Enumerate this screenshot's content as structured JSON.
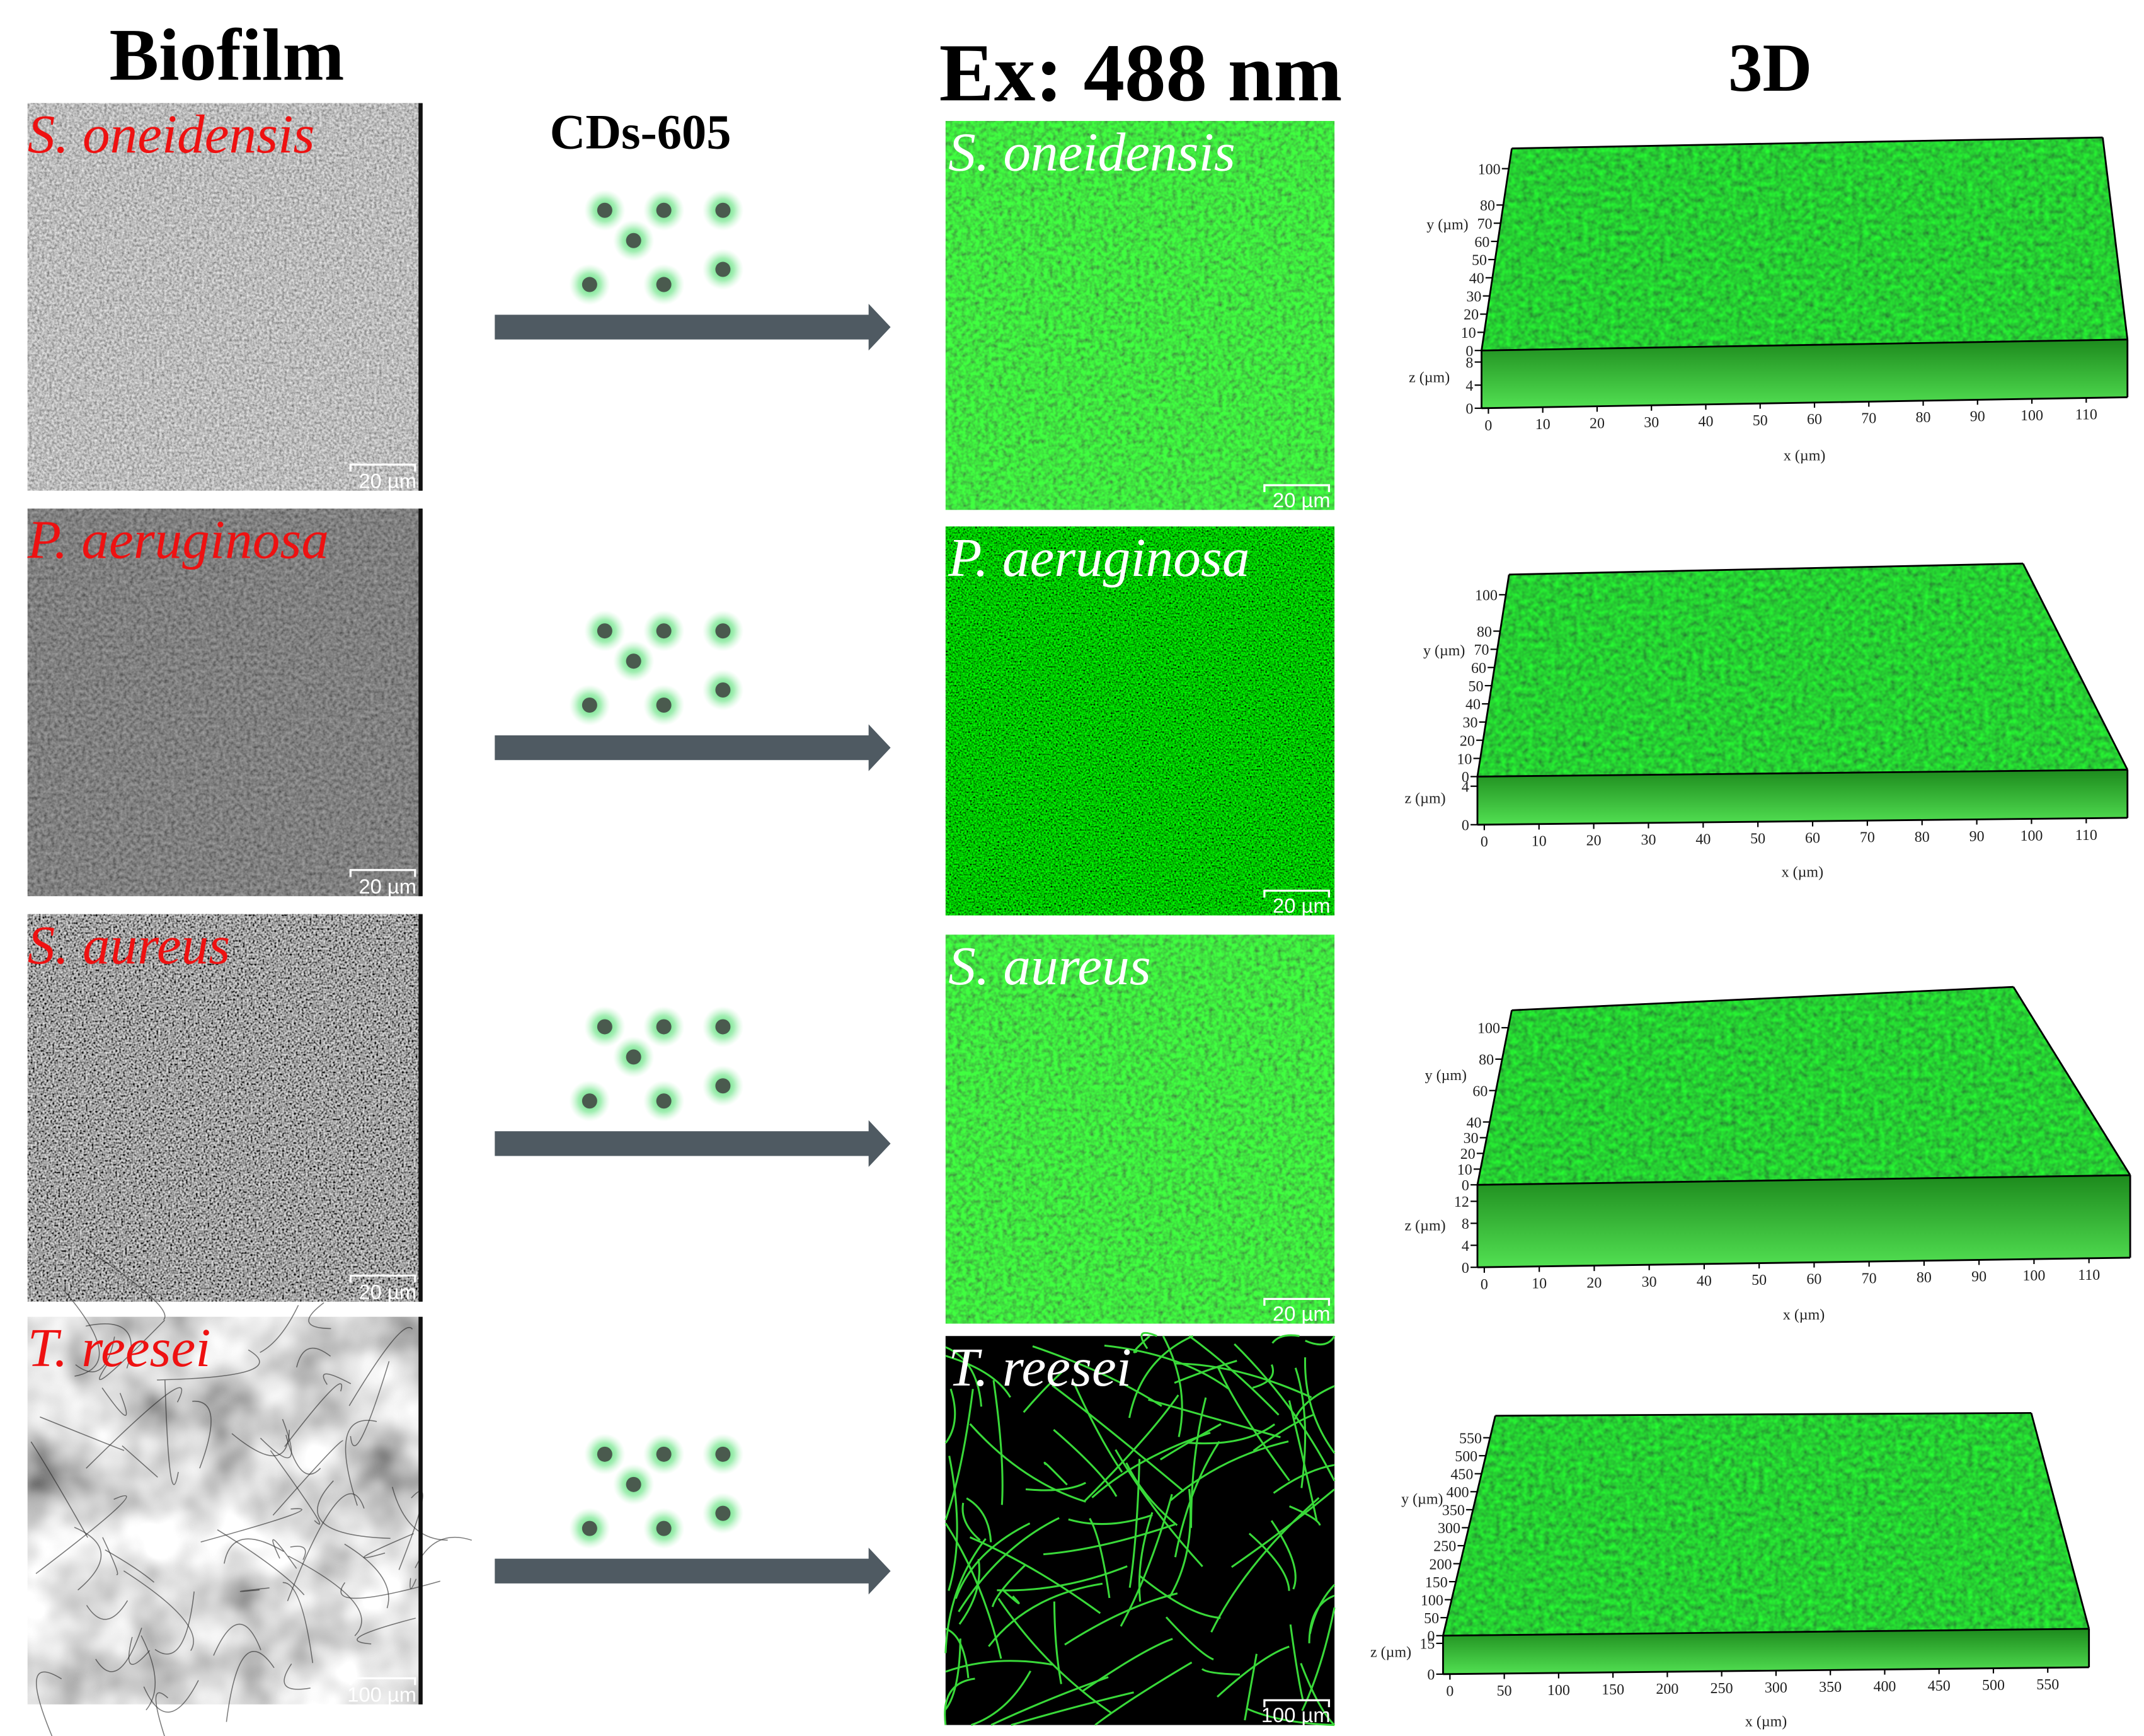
{
  "headers": {
    "biofilm": "Biofilm",
    "reagent": "CDs-605",
    "excitation": "Ex: 488 nm",
    "three_d": "3D"
  },
  "rows": [
    {
      "species": "S. oneidensis",
      "scale_bar_left": "20 µm",
      "scale_bar_right": "20 µm",
      "plot": {
        "x_label": "x (µm)",
        "y_label": "y (µm)",
        "z_label": "z (µm)",
        "xticks": [
          0,
          10,
          20,
          30,
          40,
          50,
          60,
          70,
          80,
          90,
          100,
          110
        ],
        "yticks": [
          0,
          10,
          20,
          30,
          40,
          50,
          60,
          70,
          80,
          100
        ],
        "zticks": [
          0,
          4,
          8
        ]
      }
    },
    {
      "species": "P. aeruginosa",
      "scale_bar_left": "20 µm",
      "scale_bar_right": "20 µm",
      "plot": {
        "x_label": "x (µm)",
        "y_label": "y (µm)",
        "z_label": "z (µm)",
        "xticks": [
          0,
          10,
          20,
          30,
          40,
          50,
          60,
          70,
          80,
          90,
          100,
          110
        ],
        "yticks": [
          0,
          10,
          20,
          30,
          40,
          50,
          60,
          70,
          80,
          100
        ],
        "zticks": [
          0,
          4
        ]
      }
    },
    {
      "species": "S. aureus",
      "scale_bar_left": "20 µm",
      "scale_bar_right": "20 µm",
      "plot": {
        "x_label": "x (µm)",
        "y_label": "y (µm)",
        "z_label": "z (µm)",
        "xticks": [
          0,
          10,
          20,
          30,
          40,
          50,
          60,
          70,
          80,
          90,
          100,
          110
        ],
        "yticks": [
          0,
          10,
          20,
          30,
          40,
          60,
          80,
          100
        ],
        "zticks": [
          0,
          4,
          8,
          12
        ]
      }
    },
    {
      "species": "T. reesei",
      "scale_bar_left": "100 µm",
      "scale_bar_right": "100 µm",
      "plot": {
        "x_label": "x (µm)",
        "y_label": "y (µm)",
        "z_label": "z (µm)",
        "xticks": [
          0,
          50,
          100,
          150,
          200,
          250,
          300,
          350,
          400,
          450,
          500,
          550
        ],
        "yticks": [
          0,
          50,
          100,
          150,
          200,
          250,
          300,
          350,
          400,
          450,
          500,
          550
        ],
        "zticks": [
          0,
          15
        ]
      }
    }
  ]
}
